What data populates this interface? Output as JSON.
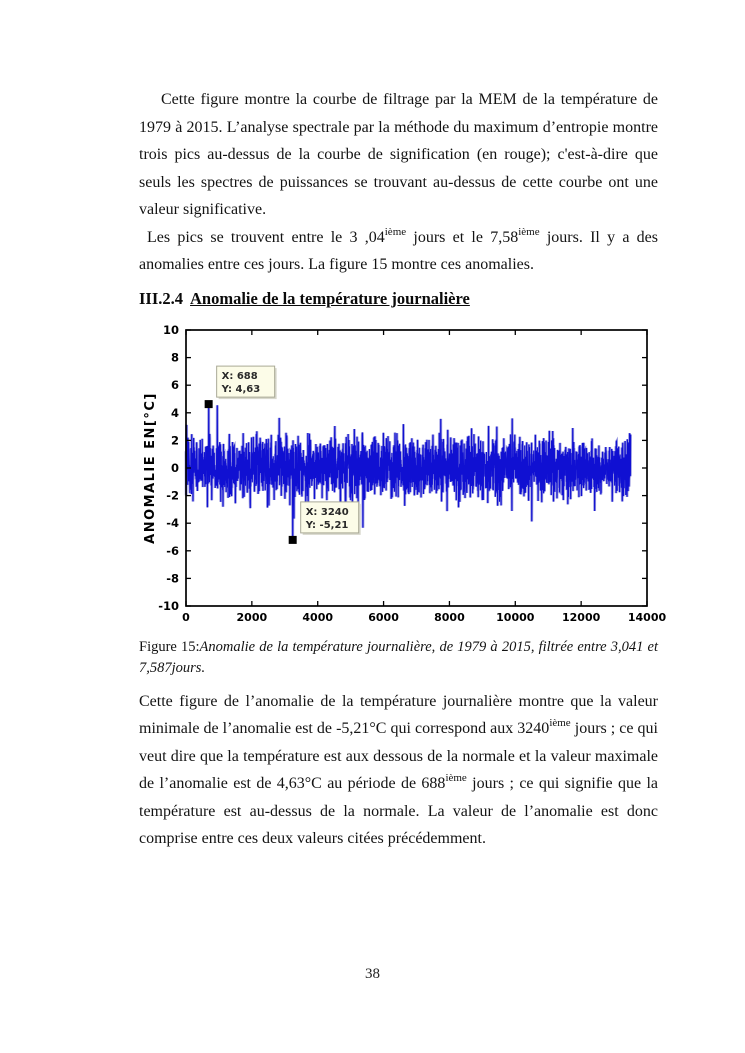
{
  "paragraphs": {
    "p1": "Cette figure montre la courbe de filtrage par la MEM de la température de 1979 à 2015. L’analyse spectrale par  la méthode du maximum d’entropie montre trois pics au-dessus de la courbe de signification  (en rouge); c'est-à-dire que seuls les spectres de puissances se trouvant au-dessus de cette courbe ont une valeur significative.",
    "p2_part1": "Les pics se trouvent entre le 3 ,04",
    "p2_sup1": "ième",
    "p2_part2": " jours et le 7,58",
    "p2_sup2": "ième",
    "p2_part3": "  jours.  Il y a des anomalies entre ces jours. La figure 15 montre ces anomalies.",
    "p3_part1": "Cette figure de l’anomalie de la température journalière montre que la valeur minimale de l’anomalie est de -5,21°C qui correspond aux 3240",
    "p3_sup1": "ième",
    "p3_part2": " jours ; ce qui veut dire que la température est aux dessous de la normale et la valeur maximale de l’anomalie est de 4,63°C au période de 688",
    "p3_sup2": "ième",
    "p3_part3": " jours ; ce qui signifie que la température est au-dessus de la normale. La valeur de l’anomalie est donc comprise entre ces deux valeurs citées précédemment."
  },
  "heading": {
    "number": "III.2.4",
    "title": "Anomalie de la température journalière"
  },
  "caption": {
    "label": "Figure 15:",
    "text": "Anomalie de la température journalière, de 1979 à 2015, filtrée entre 3,041 et 7,587jours."
  },
  "footer": {
    "page_number": "38"
  },
  "chart_data": {
    "type": "line",
    "title": "",
    "xlabel": "",
    "ylabel": "ANOMALIE EN[°C]",
    "xlim": [
      0,
      14000
    ],
    "ylim": [
      -10,
      10
    ],
    "grid": false,
    "x_ticks": [
      "0",
      "2000",
      "4000",
      "6000",
      "8000",
      "10000",
      "12000",
      "14000"
    ],
    "x_tick_values": [
      0,
      2000,
      4000,
      6000,
      8000,
      10000,
      12000,
      14000
    ],
    "y_ticks": [
      "10",
      "8",
      "6",
      "4",
      "2",
      "0",
      "-2",
      "-4",
      "-6",
      "-8",
      "-10"
    ],
    "y_tick_values": [
      10,
      8,
      6,
      4,
      2,
      0,
      -2,
      -4,
      -6,
      -8,
      -10
    ],
    "series": [
      {
        "name": "anomalie de la température journalière filtrée entre 3,041 et 7,587 jours",
        "x_start": 0,
        "x_end": 13500,
        "mean": 0,
        "typical_range": [
          -3,
          3
        ],
        "clamp": [
          -4.4,
          4.55
        ],
        "color": "#1010d2",
        "halo_color": "#9b9be0",
        "n_points": 2800,
        "seed": 1979
      }
    ],
    "extremes": {
      "max": {
        "x": 688,
        "y": 4.63
      },
      "min": {
        "x": 3240,
        "y": -5.21
      }
    },
    "datatips": [
      {
        "line1": "X: 688",
        "line2": "Y: 4,63",
        "x": 688,
        "y": 4.63
      },
      {
        "line1": "X: 3240",
        "line2": "Y: -5,21",
        "x": 3240,
        "y": -5.21
      }
    ],
    "datatip_style": {
      "bg": "#fcfce8",
      "border": "#a9a996",
      "text_color": "#2a2a2a"
    },
    "marker_color": "#000000"
  }
}
